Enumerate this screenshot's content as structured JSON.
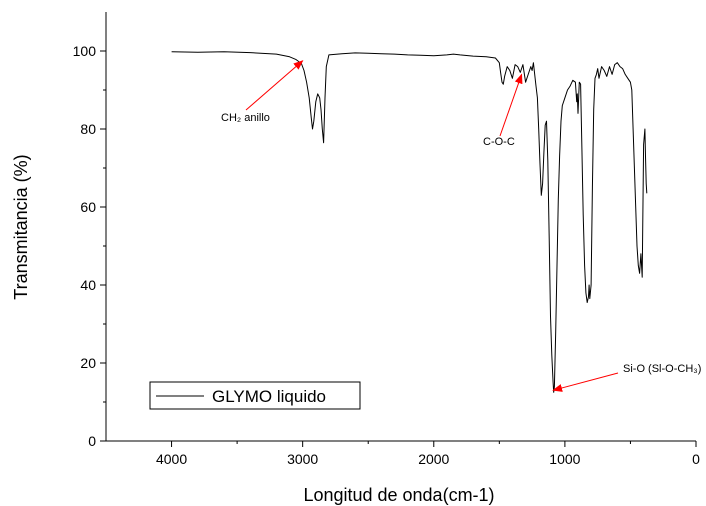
{
  "chart_data": {
    "type": "line",
    "title": "",
    "xlabel": "Longitud de onda(cm-1)",
    "ylabel": "Transmitancia (%)",
    "xlim": [
      4500,
      0
    ],
    "ylim": [
      0,
      110
    ],
    "x_ticks": [
      4000,
      3000,
      2000,
      1000,
      0
    ],
    "y_ticks": [
      0,
      20,
      40,
      60,
      80,
      100
    ],
    "grid": false,
    "legend_position": "bottom-left",
    "series": [
      {
        "name": "GLYMO liquido",
        "color": "#000000",
        "x": [
          4000,
          3800,
          3600,
          3400,
          3200,
          3100,
          3050,
          3010,
          2990,
          2970,
          2950,
          2935,
          2925,
          2915,
          2900,
          2885,
          2870,
          2860,
          2850,
          2840,
          2830,
          2820,
          2800,
          2700,
          2600,
          2500,
          2400,
          2300,
          2200,
          2100,
          2000,
          1900,
          1850,
          1800,
          1700,
          1600,
          1530,
          1500,
          1490,
          1480,
          1470,
          1460,
          1440,
          1420,
          1400,
          1380,
          1360,
          1340,
          1320,
          1300,
          1280,
          1260,
          1250,
          1240,
          1230,
          1220,
          1210,
          1200,
          1190,
          1180,
          1170,
          1160,
          1150,
          1140,
          1130,
          1120,
          1110,
          1100,
          1090,
          1085,
          1080,
          1070,
          1060,
          1050,
          1040,
          1030,
          1020,
          1000,
          980,
          960,
          940,
          920,
          910,
          905,
          900,
          890,
          880,
          870,
          860,
          850,
          840,
          830,
          820,
          815,
          810,
          800,
          790,
          780,
          770,
          760,
          750,
          740,
          720,
          700,
          680,
          660,
          640,
          620,
          600,
          580,
          560,
          540,
          520,
          500,
          490,
          480,
          470,
          460,
          450,
          440,
          430,
          420,
          410,
          400,
          390,
          385,
          380,
          375
        ],
        "y": [
          99.8,
          99.7,
          99.8,
          99.6,
          99.2,
          98.5,
          97.8,
          96.8,
          95,
          92,
          88,
          83,
          80,
          82,
          87,
          89,
          88,
          85,
          80,
          76.5,
          88,
          96,
          99,
          99.3,
          99.5,
          99.4,
          99.3,
          99.2,
          99,
          98.9,
          98.8,
          99,
          99.2,
          99,
          98.7,
          98.5,
          98.2,
          97,
          94.5,
          92,
          91.5,
          93.5,
          96,
          95,
          93,
          96.5,
          96,
          94.5,
          96.5,
          92,
          94,
          96,
          95,
          97,
          94,
          91,
          88,
          80,
          71,
          63,
          66,
          74,
          81,
          82,
          72,
          52,
          32,
          22,
          15,
          12.5,
          14,
          28,
          45,
          62,
          73,
          82,
          86,
          88,
          90,
          91,
          92.5,
          92,
          87,
          89,
          84,
          92,
          91.5,
          75,
          58,
          45,
          38,
          35.5,
          37,
          40,
          36.5,
          40,
          65,
          85,
          93,
          94,
          95.5,
          93,
          96,
          95,
          93.5,
          96,
          94,
          96.5,
          97,
          96,
          95.5,
          94,
          93,
          92,
          90,
          80,
          70,
          60,
          50,
          45,
          43,
          48,
          42,
          76,
          80,
          73,
          66,
          63.5
        ]
      }
    ],
    "annotations": [
      {
        "text": "CH₂ anillo",
        "x": 3000,
        "y": 97.5
      },
      {
        "text": "C-O-C",
        "x": 1330,
        "y": 94
      },
      {
        "text": "Si-O (Sl-O-CH₃)",
        "x": 1090,
        "y": 13
      }
    ]
  }
}
